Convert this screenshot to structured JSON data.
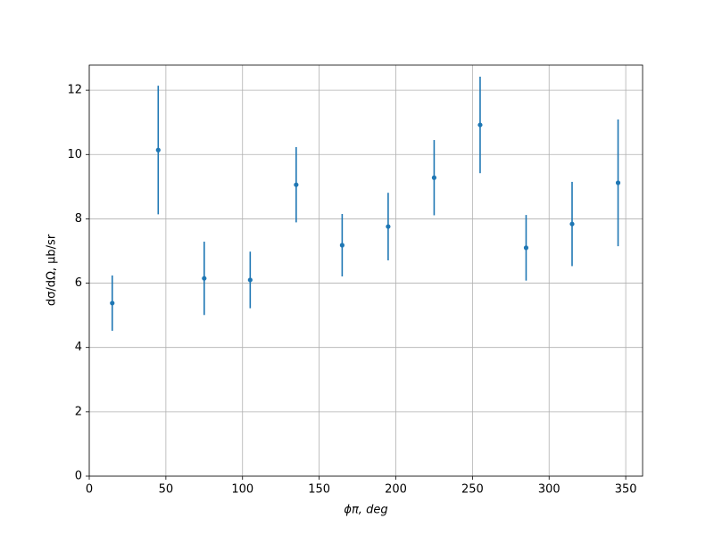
{
  "chart_data": {
    "type": "errorbar",
    "x_label": "ϕπ, deg",
    "y_label": "dσ/dΩ, μb/sr",
    "x": [
      15,
      45,
      75,
      105,
      135,
      165,
      195,
      225,
      255,
      285,
      315,
      345
    ],
    "values": [
      5.38,
      10.14,
      6.15,
      6.1,
      9.06,
      7.18,
      7.76,
      9.28,
      10.92,
      7.1,
      7.84,
      9.12
    ],
    "errors": [
      0.86,
      2.0,
      1.14,
      0.88,
      1.17,
      0.97,
      1.05,
      1.17,
      1.5,
      1.02,
      1.31,
      1.97
    ],
    "color": "#1f77b4",
    "xlim": [
      0,
      361
    ],
    "ylim": [
      0,
      12.78
    ],
    "xticks": [
      0,
      50,
      100,
      150,
      200,
      250,
      300,
      350
    ],
    "yticks": [
      0,
      2,
      4,
      6,
      8,
      10,
      12
    ],
    "grid": true
  }
}
